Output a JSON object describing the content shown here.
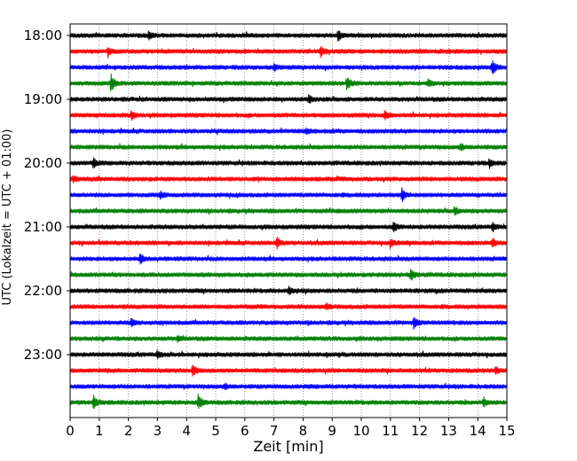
{
  "chart_data": {
    "type": "line",
    "subtype": "helicorder",
    "xlabel": "Zeit  [min]",
    "ylabel": "UTC (Lokalzeit = UTC + 01:00)",
    "xlim": [
      0,
      15
    ],
    "x_ticks": [
      0,
      1,
      2,
      3,
      4,
      5,
      6,
      7,
      8,
      9,
      10,
      11,
      12,
      13,
      14,
      15
    ],
    "x_tick_labels": [
      "0",
      "1",
      "2",
      "3",
      "4",
      "5",
      "6",
      "7",
      "8",
      "9",
      "10",
      "11",
      "12",
      "13",
      "14",
      "15"
    ],
    "y_tick_labels": [
      "18:00",
      "19:00",
      "20:00",
      "21:00",
      "22:00",
      "23:00"
    ],
    "trace_interval_minutes": 15,
    "trace_start_times": [
      "18:00",
      "18:15",
      "18:30",
      "18:45",
      "19:00",
      "19:15",
      "19:30",
      "19:45",
      "20:00",
      "20:15",
      "20:30",
      "20:45",
      "21:00",
      "21:15",
      "21:30",
      "21:45",
      "22:00",
      "22:15",
      "22:30",
      "22:45",
      "23:00",
      "23:15",
      "23:30",
      "23:45"
    ],
    "trace_color_cycle": [
      "#000000",
      "#ff0000",
      "#0000ff",
      "#008000"
    ],
    "grid": {
      "x": true,
      "style": "dotted"
    },
    "events": [
      {
        "trace": 0,
        "minute": 2.7,
        "amplitude": 0.5
      },
      {
        "trace": 0,
        "minute": 9.2,
        "amplitude": 0.6
      },
      {
        "trace": 1,
        "minute": 1.3,
        "amplitude": 0.4
      },
      {
        "trace": 1,
        "minute": 8.6,
        "amplitude": 0.6
      },
      {
        "trace": 2,
        "minute": 7.0,
        "amplitude": 0.4
      },
      {
        "trace": 2,
        "minute": 14.5,
        "amplitude": 1.0
      },
      {
        "trace": 3,
        "minute": 1.4,
        "amplitude": 1.1
      },
      {
        "trace": 3,
        "minute": 9.5,
        "amplitude": 0.9
      },
      {
        "trace": 3,
        "minute": 12.3,
        "amplitude": 0.4
      },
      {
        "trace": 4,
        "minute": 8.2,
        "amplitude": 0.5
      },
      {
        "trace": 5,
        "minute": 2.1,
        "amplitude": 0.5
      },
      {
        "trace": 5,
        "minute": 10.8,
        "amplitude": 0.5
      },
      {
        "trace": 6,
        "minute": 8.1,
        "amplitude": 0.3
      },
      {
        "trace": 7,
        "minute": 13.4,
        "amplitude": 0.4
      },
      {
        "trace": 8,
        "minute": 0.8,
        "amplitude": 0.6
      },
      {
        "trace": 8,
        "minute": 14.4,
        "amplitude": 0.5
      },
      {
        "trace": 9,
        "minute": 0.1,
        "amplitude": 0.3
      },
      {
        "trace": 10,
        "minute": 3.1,
        "amplitude": 0.4
      },
      {
        "trace": 10,
        "minute": 11.4,
        "amplitude": 0.8
      },
      {
        "trace": 11,
        "minute": 13.2,
        "amplitude": 0.5
      },
      {
        "trace": 12,
        "minute": 11.1,
        "amplitude": 0.6
      },
      {
        "trace": 12,
        "minute": 14.5,
        "amplitude": 0.5
      },
      {
        "trace": 13,
        "minute": 7.1,
        "amplitude": 0.7
      },
      {
        "trace": 13,
        "minute": 11.0,
        "amplitude": 0.4
      },
      {
        "trace": 13,
        "minute": 14.5,
        "amplitude": 0.5
      },
      {
        "trace": 14,
        "minute": 2.4,
        "amplitude": 0.7
      },
      {
        "trace": 15,
        "minute": 11.7,
        "amplitude": 0.8
      },
      {
        "trace": 16,
        "minute": 7.5,
        "amplitude": 0.4
      },
      {
        "trace": 17,
        "minute": 8.8,
        "amplitude": 0.3
      },
      {
        "trace": 18,
        "minute": 2.1,
        "amplitude": 0.5
      },
      {
        "trace": 18,
        "minute": 11.8,
        "amplitude": 0.8
      },
      {
        "trace": 19,
        "minute": 3.7,
        "amplitude": 0.3
      },
      {
        "trace": 20,
        "minute": 3.0,
        "amplitude": 0.4
      },
      {
        "trace": 21,
        "minute": 4.2,
        "amplitude": 0.8
      },
      {
        "trace": 21,
        "minute": 14.6,
        "amplitude": 0.4
      },
      {
        "trace": 22,
        "minute": 5.3,
        "amplitude": 0.3
      },
      {
        "trace": 23,
        "minute": 0.8,
        "amplitude": 0.9
      },
      {
        "trace": 23,
        "minute": 4.4,
        "amplitude": 1.1
      },
      {
        "trace": 23,
        "minute": 14.2,
        "amplitude": 0.6
      }
    ]
  }
}
